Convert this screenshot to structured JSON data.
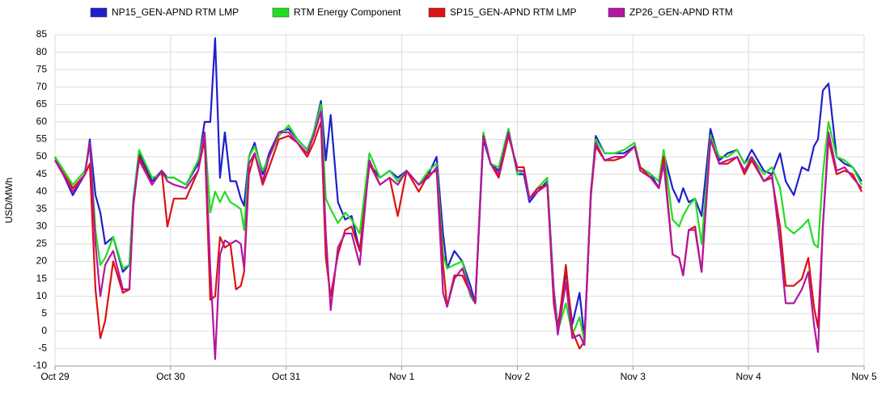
{
  "chart_data": {
    "type": "line",
    "y_label": "USD/MWh",
    "x": [
      0,
      0.154,
      0.259,
      0.301,
      0.35,
      0.392,
      0.434,
      0.503,
      0.587,
      0.643,
      0.678,
      0.727,
      0.839,
      0.923,
      0.972,
      1.028,
      1.133,
      1.238,
      1.294,
      1.343,
      1.385,
      1.427,
      1.469,
      1.517,
      1.566,
      1.608,
      1.636,
      1.678,
      1.727,
      1.797,
      1.853,
      1.937,
      2.021,
      2.098,
      2.182,
      2.238,
      2.301,
      2.343,
      2.385,
      2.448,
      2.51,
      2.566,
      2.636,
      2.72,
      2.811,
      2.895,
      2.965,
      3.042,
      3.147,
      3.231,
      3.301,
      3.357,
      3.392,
      3.455,
      3.524,
      3.594,
      3.636,
      3.706,
      3.769,
      3.839,
      3.923,
      4,
      4.056,
      4.105,
      4.175,
      4.259,
      4.315,
      4.35,
      4.42,
      4.476,
      4.538,
      4.58,
      4.636,
      4.678,
      4.755,
      4.839,
      4.923,
      5.014,
      5.063,
      5.154,
      5.224,
      5.266,
      5.343,
      5.399,
      5.434,
      5.483,
      5.538,
      5.594,
      5.671,
      5.748,
      5.818,
      5.902,
      5.965,
      6.028,
      6.133,
      6.203,
      6.273,
      6.322,
      6.392,
      6.462,
      6.517,
      6.566,
      6.601,
      6.643,
      6.692,
      6.762,
      6.832,
      6.902,
      6.979
    ],
    "series": [
      {
        "name": "NP15_GEN-APND RTM LMP",
        "color": "#1f1fcc",
        "values": [
          50,
          39,
          45,
          55,
          39,
          34,
          25,
          27,
          17,
          19,
          38,
          51,
          43,
          46,
          44,
          44,
          42,
          48,
          60,
          60,
          84,
          44,
          57,
          43,
          43,
          38,
          36,
          50,
          54,
          45,
          51,
          57,
          58,
          55,
          52,
          57,
          66,
          49,
          62,
          37,
          32,
          33,
          23,
          48,
          44,
          46,
          44,
          46,
          42,
          45,
          50,
          28,
          18,
          23,
          20,
          13,
          8,
          55,
          48,
          46,
          58,
          45,
          45,
          37,
          40,
          43,
          12,
          1,
          17,
          2,
          11,
          -2,
          39,
          56,
          51,
          51,
          51,
          53,
          47,
          45,
          41,
          51,
          41,
          37,
          41,
          37,
          38,
          33,
          58,
          49,
          51,
          52,
          48,
          52,
          46,
          45,
          51,
          43,
          39,
          47,
          46,
          53,
          55,
          69,
          71,
          50,
          48,
          47,
          43
        ]
      },
      {
        "name": "RTM Energy Component",
        "color": "#22dd22",
        "values": [
          50,
          42,
          46,
          54,
          29,
          19,
          21,
          27,
          18,
          19,
          38,
          52,
          44,
          45,
          44,
          44,
          42,
          49,
          57,
          34,
          40,
          37,
          40,
          37,
          36,
          35,
          29,
          50,
          53,
          46,
          50,
          56,
          59,
          55,
          52,
          57,
          65,
          38,
          35,
          31,
          34,
          32,
          28,
          51,
          44,
          46,
          43,
          46,
          42,
          46,
          48,
          22,
          18,
          19,
          20,
          10,
          8,
          57,
          48,
          47,
          58,
          45,
          46,
          38,
          41,
          44,
          11,
          0,
          8,
          -1,
          4,
          -3,
          40,
          55,
          51,
          51,
          52,
          54,
          47,
          45,
          43,
          52,
          32,
          30,
          33,
          36,
          38,
          25,
          56,
          50,
          50,
          52,
          48,
          50,
          45,
          47,
          41,
          30,
          28,
          30,
          32,
          25,
          24,
          45,
          60,
          50,
          49,
          47,
          42
        ]
      },
      {
        "name": "SP15_GEN-APND RTM LMP",
        "color": "#dd1111",
        "values": [
          49,
          41,
          45,
          48,
          12,
          -2,
          3,
          20,
          11,
          12,
          36,
          50,
          42,
          46,
          30,
          38,
          38,
          46,
          55,
          9,
          10,
          27,
          24,
          25,
          12,
          13,
          17,
          45,
          51,
          42,
          47,
          55,
          56,
          54,
          50,
          54,
          60,
          21,
          10,
          22,
          29,
          30,
          23,
          48,
          42,
          44,
          33,
          46,
          40,
          45,
          46,
          19,
          7,
          16,
          16,
          11,
          8,
          56,
          48,
          44,
          56,
          47,
          47,
          38,
          41,
          42,
          8,
          0,
          19,
          0,
          -5,
          -3,
          39,
          53,
          49,
          49,
          50,
          53,
          47,
          44,
          41,
          50,
          22,
          21,
          16,
          29,
          30,
          17,
          55,
          48,
          48,
          50,
          45,
          49,
          43,
          44,
          30,
          13,
          13,
          15,
          21,
          7,
          1,
          30,
          55,
          45,
          46,
          45,
          40
        ]
      },
      {
        "name": "ZP26_GEN-APND RTM",
        "color": "#b3179f",
        "values": [
          49,
          40,
          45,
          54,
          25,
          10,
          19,
          23,
          12,
          12,
          37,
          49,
          42,
          46,
          43,
          42,
          41,
          46,
          57,
          18,
          -8,
          22,
          26,
          25,
          26,
          25,
          18,
          48,
          51,
          43,
          50,
          57,
          57,
          54,
          51,
          56,
          63,
          28,
          6,
          24,
          28,
          28,
          19,
          49,
          42,
          44,
          42,
          46,
          42,
          44,
          47,
          11,
          7,
          15,
          18,
          11,
          8,
          56,
          48,
          45,
          57,
          46,
          46,
          38,
          40,
          42,
          11,
          -1,
          14,
          -2,
          -1,
          -4,
          40,
          54,
          49,
          50,
          50,
          53,
          46,
          44,
          41,
          48,
          22,
          21,
          16,
          29,
          29,
          17,
          55,
          48,
          49,
          50,
          46,
          50,
          43,
          45,
          25,
          8,
          8,
          12,
          17,
          2,
          -6,
          30,
          57,
          46,
          47,
          44,
          41
        ]
      }
    ],
    "xlim": [
      0,
      7
    ],
    "xticks": [
      {
        "value": 0,
        "label": "Oct 29"
      },
      {
        "value": 1,
        "label": "Oct 30"
      },
      {
        "value": 2,
        "label": "Oct 31"
      },
      {
        "value": 3,
        "label": "Nov 1"
      },
      {
        "value": 4,
        "label": "Nov 2"
      },
      {
        "value": 5,
        "label": "Nov 3"
      },
      {
        "value": 6,
        "label": "Nov 4"
      },
      {
        "value": 7,
        "label": "Nov 5"
      }
    ],
    "ylim": [
      -10,
      85
    ],
    "yticks": [
      -10,
      -5,
      0,
      5,
      10,
      15,
      20,
      25,
      30,
      35,
      40,
      45,
      50,
      55,
      60,
      65,
      70,
      75,
      80,
      85
    ],
    "grid": true,
    "legend": "top"
  }
}
